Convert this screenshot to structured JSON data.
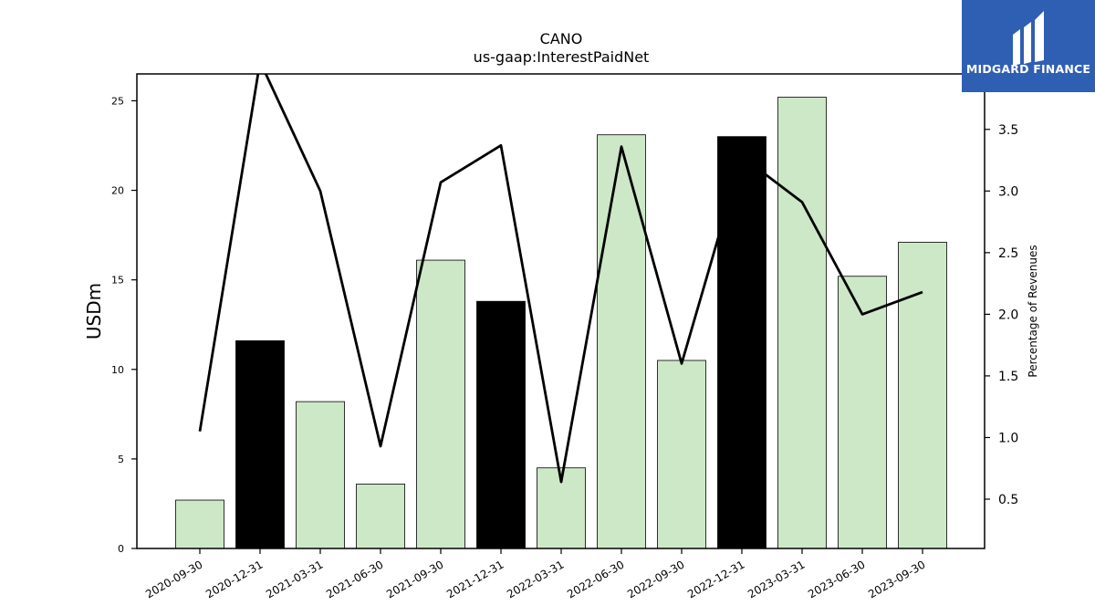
{
  "chart_data": {
    "type": "bar",
    "title": "CANO",
    "subtitle": "us-gaap:InterestPaidNet",
    "ylabel": "USDm",
    "y2label": "Percentage of Revenues",
    "categories": [
      "2020-09-30",
      "2020-12-31",
      "2021-03-31",
      "2021-06-30",
      "2021-09-30",
      "2021-12-31",
      "2022-03-31",
      "2022-06-30",
      "2022-09-30",
      "2022-12-31",
      "2023-03-31",
      "2023-06-30",
      "2023-09-30"
    ],
    "series": [
      {
        "type": "bar",
        "axis": "left",
        "values": [
          2.7,
          11.6,
          8.2,
          3.6,
          16.1,
          13.8,
          4.5,
          23.1,
          10.5,
          23.0,
          25.2,
          15.2,
          17.1
        ],
        "highlight": [
          false,
          true,
          false,
          false,
          false,
          true,
          false,
          false,
          false,
          true,
          false,
          false,
          false
        ]
      },
      {
        "type": "line",
        "axis": "right",
        "values": [
          1.05,
          4.05,
          3.0,
          0.93,
          3.07,
          3.37,
          0.64,
          3.36,
          1.6,
          3.28,
          2.91,
          2.0,
          2.18
        ]
      }
    ],
    "ylim": [
      0,
      26.5
    ],
    "y2lim": [
      0.1,
      3.95
    ],
    "yticks": [
      0,
      5,
      10,
      15,
      20,
      25
    ],
    "y2ticks": [
      0.5,
      1.0,
      1.5,
      2.0,
      2.5,
      3.0,
      3.5
    ],
    "colors": {
      "bar": "#cde8c7",
      "bar_highlight": "#000000",
      "line": "#000000",
      "axis": "#000000"
    },
    "grid": false
  },
  "logo": {
    "text": "MIDGARD FINANCE",
    "color": "#2f5fb3"
  }
}
